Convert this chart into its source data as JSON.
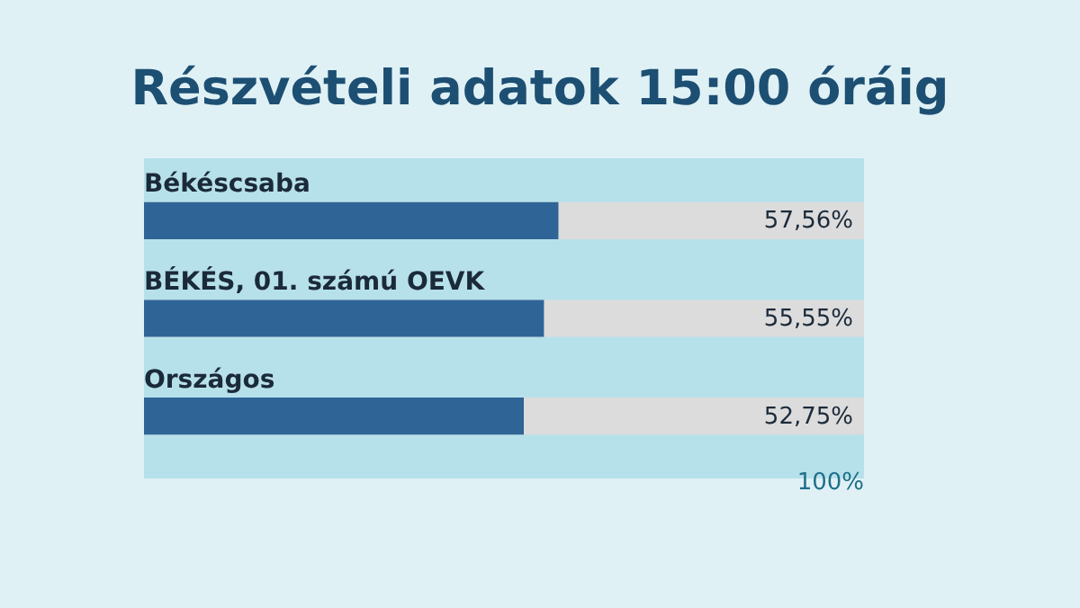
{
  "chart_data": {
    "type": "bar",
    "orientation": "horizontal",
    "title": "Részvételi adatok 15:00 óráig",
    "categories": [
      "Békéscsaba",
      "BÉKÉS, 01. számú OEVK",
      "Országos"
    ],
    "values": [
      57.56,
      55.55,
      52.75
    ],
    "value_labels": [
      "57,56%",
      "55,55%",
      "52,75%"
    ],
    "color": "#2f6496",
    "xlim": [
      0,
      100
    ],
    "annotations": [
      "100%"
    ]
  }
}
